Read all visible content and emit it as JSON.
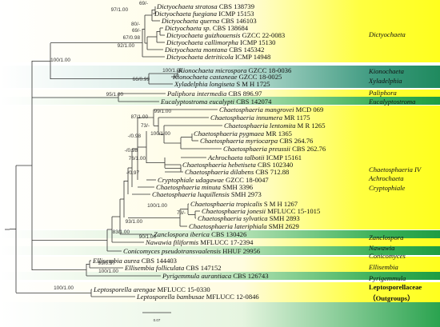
{
  "taxa": [
    {
      "genus": "Dictyochaeta",
      "epithet": "stratosa",
      "strain": "CBS 138739"
    },
    {
      "genus": "Dictyochaeta",
      "epithet": "fuegiana",
      "strain": "ICMP 15153"
    },
    {
      "genus": "Dictyochaeta",
      "epithet": "querna",
      "strain": "CBS 146103"
    },
    {
      "genus": "Dictyochaeta",
      "epithet": "sp.",
      "strain": "CBS 138684"
    },
    {
      "genus": "Dictyochaeta",
      "epithet": "guizhouensis",
      "strain": "GZCC 22-0083"
    },
    {
      "genus": "Dictyochaeta",
      "epithet": "callimorpha",
      "strain": "ICMP 15130"
    },
    {
      "genus": "Dictyochaeta",
      "epithet": "montana",
      "strain": "CBS 145342"
    },
    {
      "genus": "Dictyochaeta",
      "epithet": "detriticola",
      "strain": "ICMP 14948"
    },
    {
      "genus": "Kionochaeta",
      "epithet": "microspora",
      "strain": "GZCC 18-0036"
    },
    {
      "genus": "Kionochaeta",
      "epithet": "castaneae",
      "strain": "GZCC 18-0025"
    },
    {
      "genus": "Xyladelphia",
      "epithet": "longiseta",
      "strain": "S M H 1725"
    },
    {
      "genus": "Paliphora",
      "epithet": "intermedia",
      "strain": "CBS 896.97"
    },
    {
      "genus": "Eucalyptostroma",
      "epithet": "eucalypti",
      "strain": "CBS 142074"
    },
    {
      "genus": "Chaetosphaeria",
      "epithet": "mangrovei",
      "strain": "MCD 069"
    },
    {
      "genus": "Chaetosphaeria",
      "epithet": "innumera",
      "strain": "MR 1175"
    },
    {
      "genus": "Chaetosphaeria",
      "epithet": "lentomita",
      "strain": "M R 1265"
    },
    {
      "genus": "Chaetosphaeria",
      "epithet": "pygmaea",
      "strain": "MR 1365"
    },
    {
      "genus": "Chaetosphaeria",
      "epithet": "myriocarpa",
      "strain": "CBS 264.76"
    },
    {
      "genus": "Chaetosphaeria",
      "epithet": "preussii",
      "strain": "CBS 262.76"
    },
    {
      "genus": "Achrochaeta",
      "epithet": "talbotii",
      "strain": "ICMP 15161"
    },
    {
      "genus": "Chaetosphaeria",
      "epithet": "hebetiseta",
      "strain": "CBS 102340"
    },
    {
      "genus": "Chaetosphaeria",
      "epithet": "dilabens",
      "strain": "CBS 712.88"
    },
    {
      "genus": "Cryptophiale",
      "epithet": "udagawae",
      "strain": "GZCC 18-0047"
    },
    {
      "genus": "Chaetosphaeria",
      "epithet": "minuta",
      "strain": "SMH 3396"
    },
    {
      "genus": "Chaetosphaeria",
      "epithet": "luquillensis",
      "strain": "SMH 2973"
    },
    {
      "genus": "Chaetosphaeria",
      "epithet": "tropicalis",
      "strain": "S M H 1267"
    },
    {
      "genus": "Chaetosphaeria",
      "epithet": "jonesii",
      "strain": "MFLUCC 15-1015"
    },
    {
      "genus": "Chaetosphaeria",
      "epithet": "sylvatica",
      "strain": "SMH 2893"
    },
    {
      "genus": "Chaetosphaeria",
      "epithet": "lateriphiala",
      "strain": "SMH 2629"
    },
    {
      "genus": "Zanclospora",
      "epithet": "iberica",
      "strain": "CBS 130426"
    },
    {
      "genus": "Nawawia",
      "epithet": "filiformis",
      "strain": "MFLUCC 17-2394"
    },
    {
      "genus": "Conicomyces",
      "epithet": "pseudotransvaalensis",
      "strain": "HHUF 29956"
    },
    {
      "genus": "Ellisembia",
      "epithet": "aurea",
      "strain": "CBS 144403"
    },
    {
      "genus": "Ellisembia",
      "epithet": "folliculata",
      "strain": "CBS 147152"
    },
    {
      "genus": "Pyrigemmula",
      "epithet": "aurantiaca",
      "strain": "CBS 126743"
    },
    {
      "genus": "Leptosporella",
      "epithet": "arengae",
      "strain": "MFLUCC 15-0330"
    },
    {
      "genus": "Leptosporella",
      "epithet": "bambusae",
      "strain": "MFLUCC 12-0846"
    }
  ],
  "supports": [
    "69/-",
    "97/1.00",
    "80/-",
    "69/-",
    "67/0.98",
    "92/1.00",
    "100/1.00",
    "100/1.00",
    "66/0.99",
    "95/1.00",
    "99/1.00",
    "87/1.00",
    "73/-",
    "100/1.00",
    "-/0.98",
    "-/0.98",
    "76/1.00",
    "-/0.97",
    "100/1.00",
    "73/-",
    "93/1.00",
    "83/1.00",
    "90/1.00",
    "99/0.97",
    "100/1.00",
    "100/1.00"
  ],
  "clades": [
    {
      "label": "Dictyochaeta",
      "bold": false
    },
    {
      "label": "Kionochaeta",
      "bold": false
    },
    {
      "label": "Xyladelphia",
      "bold": false
    },
    {
      "label": "Paliphora",
      "bold": false
    },
    {
      "label": "Eucalyptostroma",
      "bold": false
    },
    {
      "label": "Chaetosphaeria IV",
      "bold": false
    },
    {
      "label": "Achrochaeta",
      "bold": false
    },
    {
      "label": "Cryptophiale",
      "bold": false
    },
    {
      "label": "Zanclospora",
      "bold": false
    },
    {
      "label": "Nawawia",
      "bold": false
    },
    {
      "label": "Conicomyces",
      "bold": false
    },
    {
      "label": "Ellisembia",
      "bold": false
    },
    {
      "label": "Pyrigemmula",
      "bold": false
    },
    {
      "label": "Leptosporellaceae",
      "bold": true
    },
    {
      "label": "（Outgroups）",
      "bold": true
    }
  ],
  "scale_label": "0.07",
  "colors": {
    "yellow": "#ffff1e",
    "green": "#1ea246",
    "green_light": "#bfe6b0",
    "teal": "#2e8c78",
    "teal_light": "#b9ddd0",
    "outgroup_green": "#23a04a",
    "branch": "#333333"
  }
}
